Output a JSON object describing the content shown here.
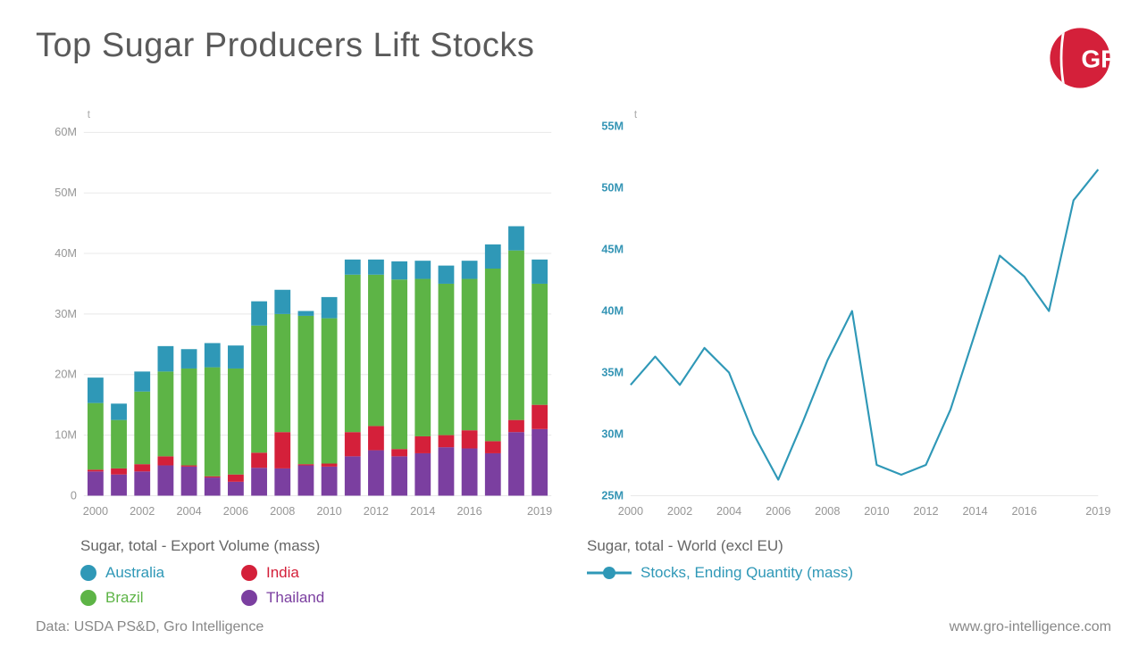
{
  "title": "Top Sugar Producers Lift Stocks",
  "footer": {
    "source": "Data: USDA PS&D, Gro Intelligence",
    "url": "www.gro-intelligence.com"
  },
  "logo_color": "#d4203a",
  "bar_chart": {
    "type": "stacked-bar",
    "legend_title": "Sugar, total - Export Volume (mass)",
    "unit": "t",
    "ylim": [
      0,
      62
    ],
    "yticks": [
      0,
      10,
      20,
      30,
      40,
      50,
      60
    ],
    "ytick_labels": [
      "0",
      "10M",
      "20M",
      "30M",
      "40M",
      "50M",
      "60M"
    ],
    "xticks": [
      2000,
      2002,
      2004,
      2006,
      2008,
      2010,
      2012,
      2014,
      2016,
      2019
    ],
    "years": [
      2000,
      2001,
      2002,
      2003,
      2004,
      2005,
      2006,
      2007,
      2008,
      2009,
      2010,
      2011,
      2012,
      2013,
      2014,
      2015,
      2016,
      2017,
      2018,
      2019
    ],
    "series": [
      {
        "name": "Thailand",
        "color": "#7b3fa0",
        "values": [
          4.0,
          3.5,
          4.0,
          5.0,
          4.8,
          3.0,
          2.3,
          4.6,
          4.5,
          5.0,
          4.8,
          6.5,
          7.5,
          6.5,
          7.0,
          8.0,
          7.8,
          7.0,
          10.5,
          11.0
        ]
      },
      {
        "name": "India",
        "color": "#d4203a",
        "values": [
          0.3,
          1.0,
          1.2,
          1.5,
          0.2,
          0.2,
          1.2,
          2.5,
          6.0,
          0.2,
          0.5,
          4.0,
          4.0,
          1.2,
          2.8,
          2.0,
          3.0,
          2.0,
          2.0,
          4.0
        ]
      },
      {
        "name": "Brazil",
        "color": "#5db446",
        "values": [
          11.0,
          8.0,
          12.0,
          14.0,
          16.0,
          18.0,
          17.5,
          21.0,
          19.5,
          24.5,
          24.0,
          26.0,
          25.0,
          28.0,
          26.0,
          25.0,
          25.0,
          28.5,
          28.0,
          20.0
        ]
      },
      {
        "name": "Australia",
        "color": "#2f98b7",
        "values": [
          4.2,
          2.7,
          3.3,
          4.2,
          3.2,
          4.0,
          3.8,
          4.0,
          4.0,
          0.8,
          3.5,
          2.5,
          2.5,
          3.0,
          3.0,
          3.0,
          3.0,
          4.0,
          4.0,
          4.0
        ]
      }
    ],
    "legend_order": [
      "Australia",
      "India",
      "Brazil",
      "Thailand"
    ],
    "background_color": "#ffffff",
    "grid_color": "#e8e8e8",
    "axis_text_color": "#969696",
    "bar_width": 0.68
  },
  "line_chart": {
    "type": "line",
    "legend_title": "Sugar, total - World (excl EU)",
    "series_name": "Stocks, Ending Quantity (mass)",
    "unit": "t",
    "ylim": [
      25,
      55.5
    ],
    "yticks": [
      25,
      30,
      35,
      40,
      45,
      50,
      55
    ],
    "ytick_labels": [
      "25M",
      "30M",
      "35M",
      "40M",
      "45M",
      "50M",
      "55M"
    ],
    "xticks": [
      2000,
      2002,
      2004,
      2006,
      2008,
      2010,
      2012,
      2014,
      2016,
      2019
    ],
    "years": [
      2000,
      2001,
      2002,
      2003,
      2004,
      2005,
      2006,
      2007,
      2008,
      2009,
      2010,
      2011,
      2012,
      2013,
      2014,
      2015,
      2016,
      2017,
      2018,
      2019
    ],
    "values": [
      34.0,
      36.3,
      34.0,
      37.0,
      35.0,
      30.0,
      26.3,
      31.0,
      36.0,
      40.0,
      27.5,
      26.7,
      27.5,
      32.0,
      38.2,
      44.5,
      42.8,
      40.0,
      49.0,
      51.5
    ],
    "line_color": "#2f98b7",
    "line_width": 2.2,
    "background_color": "#ffffff",
    "axis_text_color": "#3595b5"
  }
}
